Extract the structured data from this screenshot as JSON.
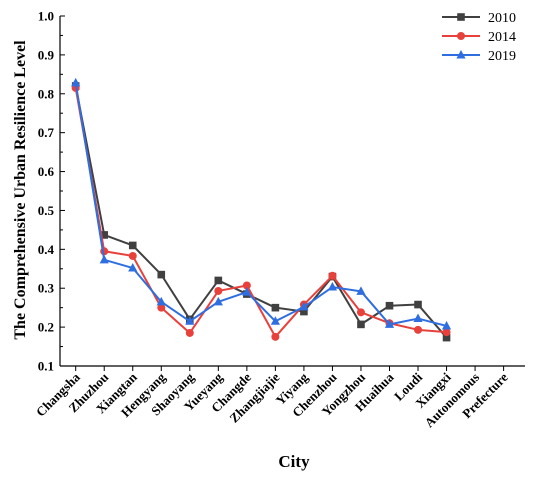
{
  "chart_data": {
    "type": "line",
    "xlabel": "City",
    "ylabel": "The Comprehensive Urban Resilience Level",
    "ylim": [
      0.1,
      1.0
    ],
    "yticks": [
      "0.1",
      "0.2",
      "0.3",
      "0.4",
      "0.5",
      "0.6",
      "0.7",
      "0.8",
      "0.9",
      "1.0"
    ],
    "categories": [
      "Changsha",
      "Zhuzhou",
      "Xiangtan",
      "Hengyang",
      "Shaoyang",
      "Yueyang",
      "Changde",
      "Zhangjiajie",
      "Yiyang",
      "Chenzhou",
      "Yongzhou",
      "Huaihua",
      "Loudi",
      "Xiangxi",
      "Autonomous",
      "Prefecture"
    ],
    "legend_position": "top-right",
    "grid": false,
    "series": [
      {
        "name": "2010",
        "color": "#404040",
        "marker": "square",
        "values": [
          0.82,
          0.437,
          0.41,
          0.335,
          0.22,
          0.32,
          0.285,
          0.25,
          0.24,
          0.33,
          0.207,
          0.255,
          0.258,
          0.173,
          null,
          null
        ]
      },
      {
        "name": "2014",
        "color": "#e8413c",
        "marker": "circle",
        "values": [
          0.815,
          0.395,
          0.383,
          0.25,
          0.185,
          0.293,
          0.307,
          0.175,
          0.258,
          0.332,
          0.238,
          0.21,
          0.193,
          0.187,
          null,
          null
        ]
      },
      {
        "name": "2019",
        "color": "#2f6ee0",
        "marker": "triangle",
        "values": [
          0.828,
          0.373,
          0.352,
          0.265,
          0.215,
          0.265,
          0.29,
          0.215,
          0.252,
          0.303,
          0.292,
          0.207,
          0.222,
          0.203,
          null,
          null
        ]
      }
    ]
  }
}
